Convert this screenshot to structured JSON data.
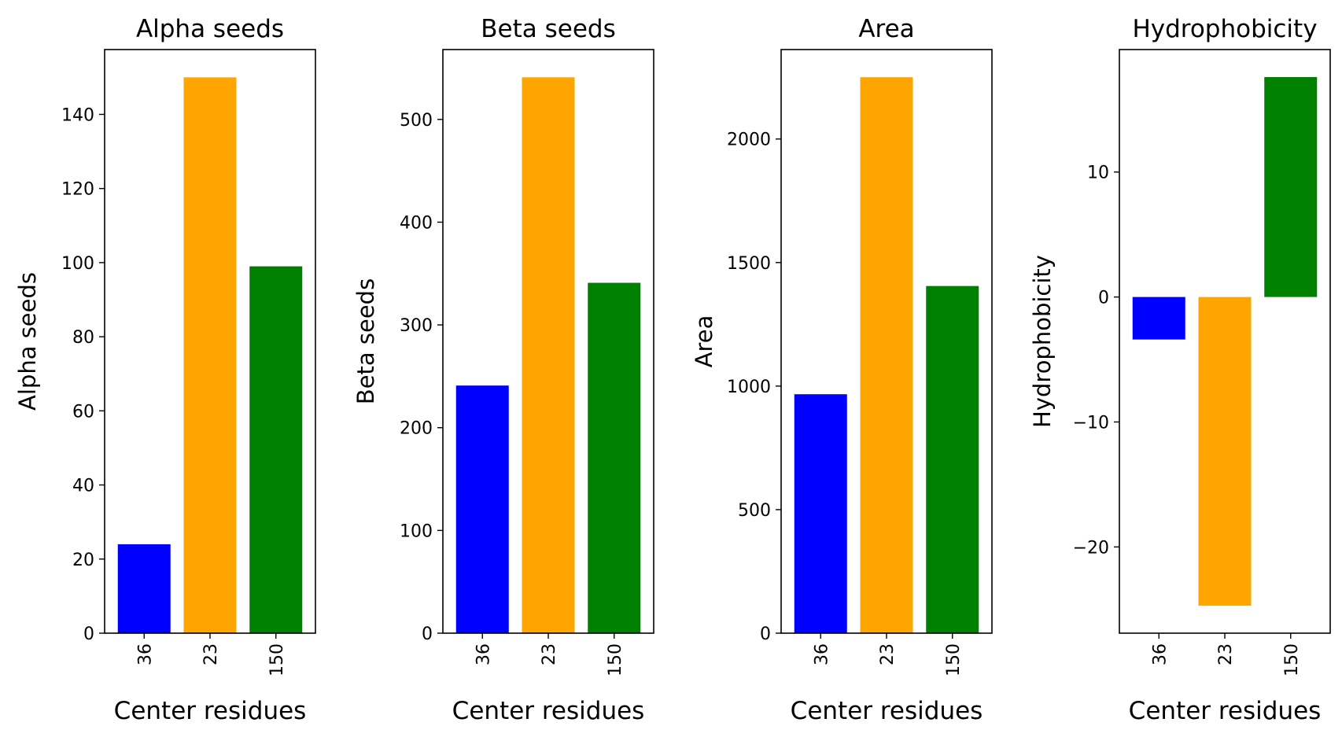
{
  "chart_data": [
    {
      "type": "bar",
      "title": "Alpha seeds",
      "xlabel": "Center residues",
      "ylabel": "Alpha seeds",
      "categories": [
        "36",
        "23",
        "150"
      ],
      "values": [
        24,
        150,
        99
      ],
      "colors": [
        "#0000ff",
        "#ffa500",
        "#008000"
      ],
      "ylim": [
        0,
        157.5
      ],
      "yticks": [
        0,
        20,
        40,
        60,
        80,
        100,
        120,
        140
      ],
      "ytick_labels": [
        "0",
        "20",
        "40",
        "60",
        "80",
        "100",
        "120",
        "140"
      ],
      "grid": false
    },
    {
      "type": "bar",
      "title": "Beta seeds",
      "xlabel": "Center residues",
      "ylabel": "Beta seeds",
      "categories": [
        "36",
        "23",
        "150"
      ],
      "values": [
        241,
        541,
        341
      ],
      "colors": [
        "#0000ff",
        "#ffa500",
        "#008000"
      ],
      "ylim": [
        0,
        568
      ],
      "yticks": [
        0,
        100,
        200,
        300,
        400,
        500
      ],
      "ytick_labels": [
        "0",
        "100",
        "200",
        "300",
        "400",
        "500"
      ],
      "grid": false
    },
    {
      "type": "bar",
      "title": "Area",
      "xlabel": "Center residues",
      "ylabel": "Area",
      "categories": [
        "36",
        "23",
        "150"
      ],
      "values": [
        967,
        2250,
        1405
      ],
      "colors": [
        "#0000ff",
        "#ffa500",
        "#008000"
      ],
      "ylim": [
        0,
        2362
      ],
      "yticks": [
        0,
        500,
        1000,
        1500,
        2000
      ],
      "ytick_labels": [
        "0",
        "500",
        "1000",
        "1500",
        "2000"
      ],
      "grid": false
    },
    {
      "type": "bar",
      "title": "Hydrophobicity",
      "xlabel": "Center residues",
      "ylabel": "Hydrophobicity",
      "categories": [
        "36",
        "23",
        "150"
      ],
      "values": [
        -3.4,
        -24.7,
        17.6
      ],
      "colors": [
        "#0000ff",
        "#ffa500",
        "#008000"
      ],
      "ylim": [
        -26.9,
        19.8
      ],
      "yticks": [
        -20,
        -10,
        0,
        10
      ],
      "ytick_labels": [
        "−20",
        "−10",
        "0",
        "10"
      ],
      "grid": false
    }
  ]
}
